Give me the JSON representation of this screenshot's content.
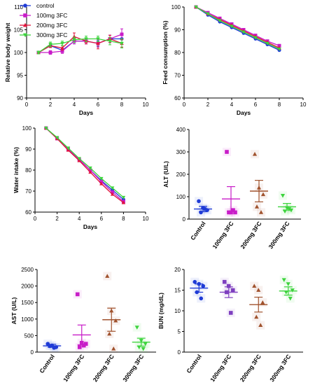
{
  "chart_data": [
    {
      "id": "body-weight",
      "type": "line",
      "xlabel": "Days",
      "ylabel": "Relative body weight",
      "xlim": [
        0,
        10
      ],
      "ylim": [
        90,
        110
      ],
      "xticks": [
        0,
        2,
        4,
        6,
        8,
        10
      ],
      "yticks": [
        90,
        95,
        100,
        105,
        110
      ],
      "legend": "top-left",
      "x": [
        1,
        2,
        3,
        4,
        5,
        6,
        7,
        8
      ],
      "series": [
        {
          "name": "control",
          "color": "#1f3bd6",
          "marker": "circle",
          "values": [
            100,
            101.5,
            100.5,
            102.5,
            102.5,
            102,
            103,
            103
          ],
          "err": [
            0.3,
            0.4,
            0.4,
            0.6,
            0.6,
            0.6,
            0.8,
            0.8
          ]
        },
        {
          "name": "100mg 3FC",
          "color": "#c81cc8",
          "marker": "square",
          "values": [
            100,
            100,
            100.3,
            102.5,
            102.5,
            102,
            103,
            104
          ],
          "err": [
            0.3,
            0.4,
            0.5,
            0.6,
            0.6,
            0.8,
            0.8,
            1.2
          ]
        },
        {
          "name": "200mg 3FC",
          "color": "#e0143c",
          "marker": "triangle",
          "values": [
            100,
            101.5,
            101,
            103.5,
            102.5,
            102,
            103,
            102
          ],
          "err": [
            0.3,
            0.4,
            0.5,
            0.8,
            0.6,
            1.2,
            0.8,
            0.8
          ]
        },
        {
          "name": "300mg 3FC",
          "color": "#3dd43d",
          "marker": "triangle-down",
          "values": [
            100,
            101.8,
            102,
            102.8,
            103,
            103,
            102.5,
            102
          ],
          "err": [
            0.3,
            0.5,
            0.5,
            0.6,
            0.6,
            0.6,
            0.8,
            1.0
          ]
        }
      ]
    },
    {
      "id": "feed-consumption",
      "type": "line",
      "xlabel": "Days",
      "ylabel": "Feed consumption (%)",
      "xlim": [
        0,
        10
      ],
      "ylim": [
        60,
        100
      ],
      "xticks": [
        0,
        2,
        4,
        6,
        8,
        10
      ],
      "yticks": [
        60,
        70,
        80,
        90,
        100
      ],
      "x": [
        1,
        2,
        3,
        4,
        5,
        6,
        7,
        8
      ],
      "series": [
        {
          "color": "#1f3bd6",
          "marker": "circle",
          "values": [
            100,
            96.5,
            93.5,
            91,
            88.5,
            86,
            83.5,
            81
          ]
        },
        {
          "color": "#c81cc8",
          "marker": "square",
          "values": [
            100,
            97.5,
            95,
            92.5,
            90,
            87.5,
            85,
            83
          ]
        },
        {
          "color": "#e0143c",
          "marker": "triangle",
          "values": [
            100,
            97,
            94.5,
            92,
            89.5,
            87,
            84.5,
            82
          ]
        },
        {
          "color": "#3dd43d",
          "marker": "triangle-down",
          "values": [
            100,
            97,
            94,
            91.5,
            89,
            86.5,
            84,
            81.5
          ]
        }
      ]
    },
    {
      "id": "water-intake",
      "type": "line",
      "xlabel": "Days",
      "ylabel": "Water intake (%)",
      "xlim": [
        0,
        10
      ],
      "ylim": [
        60,
        100
      ],
      "xticks": [
        0,
        2,
        4,
        6,
        8,
        10
      ],
      "yticks": [
        60,
        70,
        80,
        90,
        100
      ],
      "x": [
        1,
        2,
        3,
        4,
        5,
        6,
        7,
        8
      ],
      "series": [
        {
          "color": "#1f3bd6",
          "marker": "circle",
          "values": [
            100,
            95,
            90,
            85,
            80,
            75,
            70.5,
            66
          ]
        },
        {
          "color": "#c81cc8",
          "marker": "square",
          "values": [
            100,
            95,
            90,
            85,
            80,
            74.5,
            69.5,
            65
          ]
        },
        {
          "color": "#e0143c",
          "marker": "triangle",
          "values": [
            100,
            95,
            89.5,
            84.5,
            79,
            73.5,
            68.5,
            64.5
          ]
        },
        {
          "color": "#3dd43d",
          "marker": "triangle-down",
          "values": [
            100,
            95.5,
            90.5,
            85.5,
            81,
            76,
            71.5,
            67
          ]
        }
      ]
    },
    {
      "id": "alt",
      "type": "scatter",
      "ylabel": "ALT (U/L)",
      "ylim": [
        0,
        400
      ],
      "yticks": [
        0,
        100,
        200,
        300,
        400
      ],
      "categories": [
        "Control",
        "100mg 3FC",
        "200mg 3FC",
        "300mg 3FC"
      ],
      "colors": [
        "#1f3bd6",
        "#c81cc8",
        "#a0522d",
        "#3dd43d"
      ],
      "markers": [
        "circle",
        "square",
        "triangle",
        "triangle-down"
      ],
      "points": [
        [
          80,
          50,
          40,
          30,
          45
        ],
        [
          300,
          30,
          30,
          30,
          40
        ],
        [
          290,
          140,
          110,
          55,
          30
        ],
        [
          105,
          50,
          40,
          35,
          45
        ]
      ],
      "mean": [
        45,
        90,
        125,
        55
      ],
      "sem": [
        12,
        55,
        48,
        15
      ]
    },
    {
      "id": "ast",
      "type": "scatter",
      "ylabel": "AST (U/L)",
      "ylim": [
        0,
        2500
      ],
      "yticks": [
        0,
        500,
        1000,
        1500,
        2000,
        2500
      ],
      "categories": [
        "Control",
        "100mg 3FC",
        "200mg 3FC",
        "300mg 3FC"
      ],
      "colors": [
        "#1f3bd6",
        "#c81cc8",
        "#a0522d",
        "#3dd43d"
      ],
      "markers": [
        "circle",
        "square",
        "triangle",
        "triangle-down"
      ],
      "points": [
        [
          250,
          200,
          150,
          180,
          130
        ],
        [
          1750,
          280,
          250,
          150,
          200
        ],
        [
          2300,
          1250,
          950,
          550,
          100
        ],
        [
          750,
          350,
          250,
          150,
          100
        ]
      ],
      "mean": [
        190,
        520,
        980,
        300
      ],
      "sem": [
        45,
        300,
        350,
        120
      ]
    },
    {
      "id": "bun",
      "type": "scatter",
      "ylabel": "BUN (mg/dL)",
      "ylim": [
        0,
        20
      ],
      "yticks": [
        0,
        5,
        10,
        15,
        20
      ],
      "categories": [
        "Control",
        "100mg 3FC",
        "200mg 3FC",
        "300mg 3FC"
      ],
      "colors": [
        "#1f3bd6",
        "#7e3fbf",
        "#a0522d",
        "#3dd43d"
      ],
      "markers": [
        "circle",
        "square",
        "triangle",
        "triangle-down"
      ],
      "points": [
        [
          17,
          16.5,
          16,
          14.5,
          13
        ],
        [
          17,
          16,
          15,
          14.5,
          9.5
        ],
        [
          16,
          15,
          12,
          8.5,
          6.5
        ],
        [
          17.5,
          16.5,
          15,
          14.5,
          13
        ]
      ],
      "mean": [
        15.5,
        14.5,
        11.5,
        14.8
      ],
      "sem": [
        1.0,
        1.3,
        1.8,
        1.0
      ]
    }
  ]
}
